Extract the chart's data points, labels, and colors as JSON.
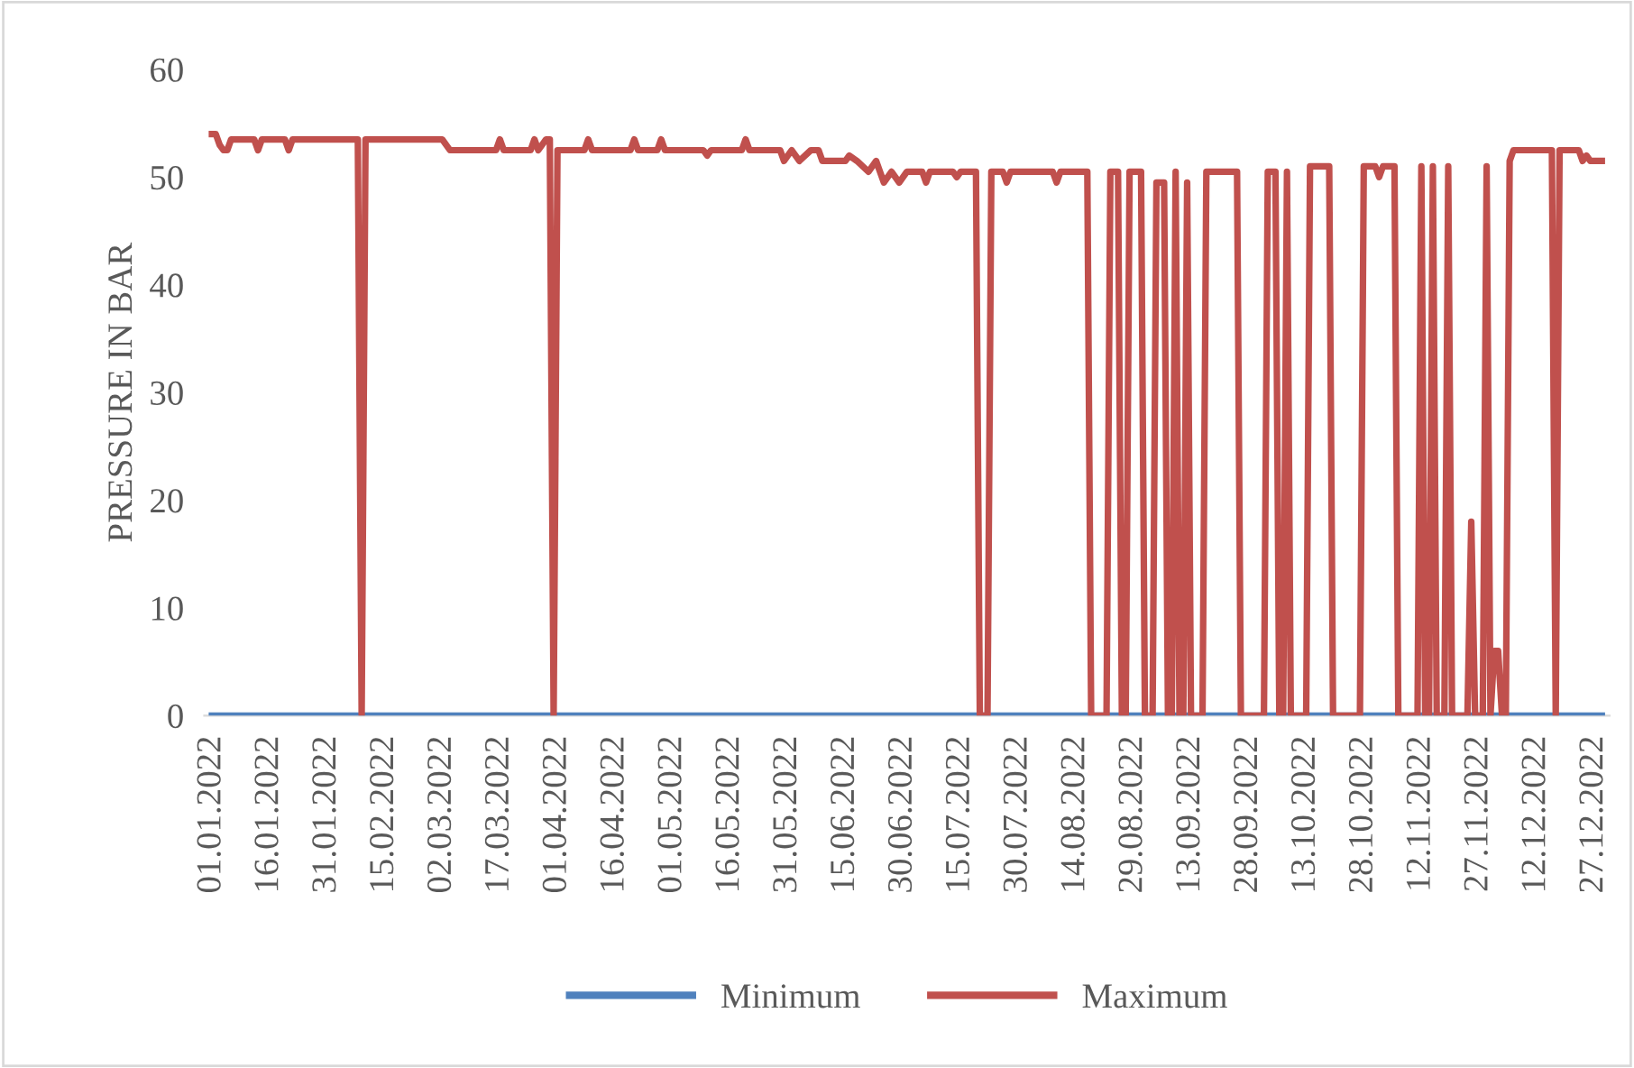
{
  "chart_data": {
    "type": "line",
    "ylabel": "PRESSURE IN BAR",
    "xlim": [
      "2021-12-30",
      "2022-12-31"
    ],
    "ylim": [
      0,
      60
    ],
    "yticks": [
      0,
      10,
      20,
      30,
      40,
      50,
      60
    ],
    "xticks": [
      {
        "value": "2022-01-01",
        "label": "01.01.2022"
      },
      {
        "value": "2022-01-16",
        "label": "16.01.2022"
      },
      {
        "value": "2022-01-31",
        "label": "31.01.2022"
      },
      {
        "value": "2022-02-15",
        "label": "15.02.2022"
      },
      {
        "value": "2022-03-02",
        "label": "02.03.2022"
      },
      {
        "value": "2022-03-17",
        "label": "17.03.2022"
      },
      {
        "value": "2022-04-01",
        "label": "01.04.2022"
      },
      {
        "value": "2022-04-16",
        "label": "16.04.2022"
      },
      {
        "value": "2022-05-01",
        "label": "01.05.2022"
      },
      {
        "value": "2022-05-16",
        "label": "16.05.2022"
      },
      {
        "value": "2022-05-31",
        "label": "31.05.2022"
      },
      {
        "value": "2022-06-15",
        "label": "15.06.2022"
      },
      {
        "value": "2022-06-30",
        "label": "30.06.2022"
      },
      {
        "value": "2022-07-15",
        "label": "15.07.2022"
      },
      {
        "value": "2022-07-30",
        "label": "30.07.2022"
      },
      {
        "value": "2022-08-14",
        "label": "14.08.2022"
      },
      {
        "value": "2022-08-29",
        "label": "29.08.2022"
      },
      {
        "value": "2022-09-13",
        "label": "13.09.2022"
      },
      {
        "value": "2022-09-28",
        "label": "28.09.2022"
      },
      {
        "value": "2022-10-13",
        "label": "13.10.2022"
      },
      {
        "value": "2022-10-28",
        "label": "28.10.2022"
      },
      {
        "value": "2022-11-12",
        "label": "12.11.2022"
      },
      {
        "value": "2022-11-27",
        "label": "27.11.2022"
      },
      {
        "value": "2022-12-12",
        "label": "12.12.2022"
      },
      {
        "value": "2022-12-27",
        "label": "27.12.2022"
      }
    ],
    "grid": false,
    "legend": "bottom",
    "marker": "none",
    "line_style": "solid",
    "series": [
      {
        "name": "Minimum",
        "color": "#4f81bd",
        "x": [
          "2022-01-01",
          "2022-12-29"
        ],
        "values": [
          0,
          0
        ]
      },
      {
        "name": "Maximum",
        "color": "#c0504d",
        "x": [
          "2022-01-01",
          "2022-01-02",
          "2022-01-03",
          "2022-01-04",
          "2022-01-05",
          "2022-01-06",
          "2022-01-12",
          "2022-01-13",
          "2022-01-14",
          "2022-01-20",
          "2022-01-21",
          "2022-01-22",
          "2022-02-08",
          "2022-02-09",
          "2022-02-10",
          "2022-03-02",
          "2022-03-04",
          "2022-03-16",
          "2022-03-17",
          "2022-03-18",
          "2022-03-25",
          "2022-03-26",
          "2022-03-27",
          "2022-03-29",
          "2022-03-30",
          "2022-03-31",
          "2022-04-01",
          "2022-04-08",
          "2022-04-09",
          "2022-04-10",
          "2022-04-20",
          "2022-04-21",
          "2022-04-22",
          "2022-04-27",
          "2022-04-28",
          "2022-04-29",
          "2022-05-09",
          "2022-05-10",
          "2022-05-11",
          "2022-05-19",
          "2022-05-20",
          "2022-05-21",
          "2022-05-29",
          "2022-05-30",
          "2022-06-01",
          "2022-06-03",
          "2022-06-06",
          "2022-06-08",
          "2022-06-09",
          "2022-06-15",
          "2022-06-16",
          "2022-06-18",
          "2022-06-21",
          "2022-06-23",
          "2022-06-25",
          "2022-06-27",
          "2022-06-29",
          "2022-07-01",
          "2022-07-05",
          "2022-07-06",
          "2022-07-07",
          "2022-07-13",
          "2022-07-14",
          "2022-07-15",
          "2022-07-19",
          "2022-07-20",
          "2022-07-22",
          "2022-07-23",
          "2022-07-26",
          "2022-07-27",
          "2022-07-28",
          "2022-08-08",
          "2022-08-09",
          "2022-08-10",
          "2022-08-17",
          "2022-08-18",
          "2022-08-22",
          "2022-08-23",
          "2022-08-25",
          "2022-08-26",
          "2022-08-27",
          "2022-08-28",
          "2022-08-31",
          "2022-09-01",
          "2022-09-03",
          "2022-09-04",
          "2022-09-06",
          "2022-09-07",
          "2022-09-08",
          "2022-09-09",
          "2022-09-10",
          "2022-09-11",
          "2022-09-12",
          "2022-09-13",
          "2022-09-16",
          "2022-09-17",
          "2022-09-25",
          "2022-09-26",
          "2022-10-02",
          "2022-10-03",
          "2022-10-05",
          "2022-10-06",
          "2022-10-07",
          "2022-10-08",
          "2022-10-09",
          "2022-10-13",
          "2022-10-14",
          "2022-10-19",
          "2022-10-20",
          "2022-10-27",
          "2022-10-28",
          "2022-10-31",
          "2022-11-01",
          "2022-11-02",
          "2022-11-05",
          "2022-11-06",
          "2022-11-11",
          "2022-11-12",
          "2022-11-13",
          "2022-11-14",
          "2022-11-15",
          "2022-11-16",
          "2022-11-18",
          "2022-11-19",
          "2022-11-20",
          "2022-11-24",
          "2022-11-25",
          "2022-11-26",
          "2022-11-28",
          "2022-11-29",
          "2022-11-30",
          "2022-12-01",
          "2022-12-02",
          "2022-12-03",
          "2022-12-04",
          "2022-12-05",
          "2022-12-06",
          "2022-12-16",
          "2022-12-17",
          "2022-12-18",
          "2022-12-23",
          "2022-12-24",
          "2022-12-25",
          "2022-12-26",
          "2022-12-29"
        ],
        "values": [
          54,
          54,
          53,
          52.5,
          52.5,
          53.5,
          53.5,
          52.5,
          53.5,
          53.5,
          52.5,
          53.5,
          53.5,
          0,
          53.5,
          53.5,
          52.5,
          52.5,
          53.5,
          52.5,
          52.5,
          53.5,
          52.5,
          53.5,
          53.5,
          0,
          52.5,
          52.5,
          53.5,
          52.5,
          52.5,
          53.5,
          52.5,
          52.5,
          53.5,
          52.5,
          52.5,
          52,
          52.5,
          52.5,
          53.5,
          52.5,
          52.5,
          51.5,
          52.5,
          51.5,
          52.5,
          52.5,
          51.5,
          51.5,
          52,
          51.5,
          50.5,
          51.5,
          49.5,
          50.5,
          49.5,
          50.5,
          50.5,
          49.5,
          50.5,
          50.5,
          50,
          50.5,
          50.5,
          0,
          0,
          50.5,
          50.5,
          49.5,
          50.5,
          50.5,
          49.5,
          50.5,
          50.5,
          0,
          0,
          50.5,
          50.5,
          0,
          0,
          50.5,
          50.5,
          0,
          0,
          49.5,
          49.5,
          0,
          0,
          50.5,
          0,
          0,
          49.5,
          0,
          0,
          50.5,
          50.5,
          0,
          0,
          50.5,
          50.5,
          0,
          0,
          50.5,
          0,
          0,
          51,
          51,
          0,
          0,
          51,
          51,
          50,
          51,
          51,
          0,
          0,
          51,
          0,
          0,
          51,
          0,
          0,
          51,
          0,
          0,
          18,
          0,
          0,
          51,
          0,
          6,
          6,
          0,
          0,
          51.5,
          52.5,
          52.5,
          0,
          52.5,
          52.5,
          51.5,
          52,
          51.5,
          51.5
        ]
      }
    ]
  }
}
